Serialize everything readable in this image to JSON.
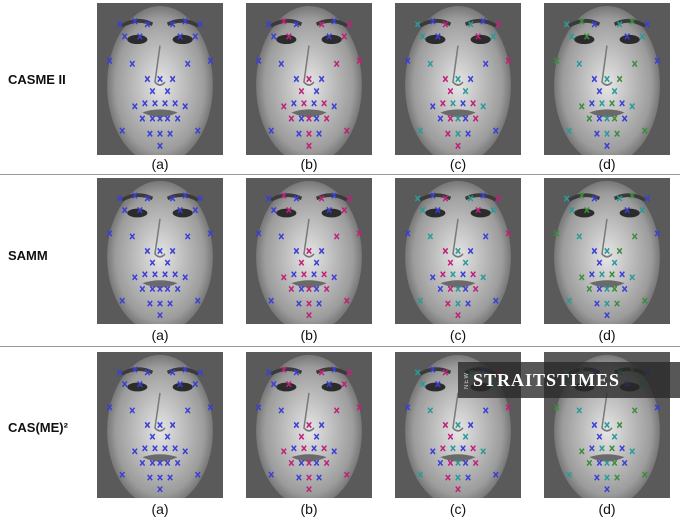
{
  "rows": [
    {
      "label": "CASME II",
      "captions": [
        "(a)",
        "(b)",
        "(c)",
        "(d)"
      ]
    },
    {
      "label": "SAMM",
      "captions": [
        "(a)",
        "(b)",
        "(c)",
        "(d)"
      ]
    },
    {
      "label": "CAS(ME)²",
      "captions": [
        "(a)",
        "(b)",
        "(c)",
        "(d)"
      ]
    }
  ],
  "marker_colors": {
    "blue": "#3a3fd6",
    "magenta": "#c0207a",
    "teal": "#2a9a9a",
    "green": "#3c8c3c"
  },
  "watermark": {
    "prefix": "NEW",
    "text": "STRAITSTIMES"
  }
}
